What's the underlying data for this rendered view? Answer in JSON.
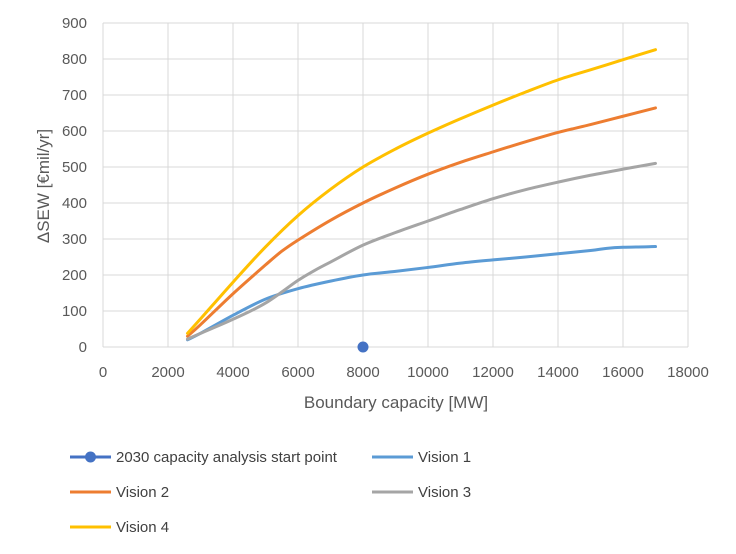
{
  "chart_data": {
    "type": "line",
    "title": "",
    "xlabel": "Boundary capacity [MW]",
    "ylabel": "ΔSEW [€mil/yr]",
    "xlim": [
      0,
      18000
    ],
    "ylim": [
      0,
      900
    ],
    "x_ticks": [
      0,
      2000,
      4000,
      6000,
      8000,
      10000,
      12000,
      14000,
      16000,
      18000
    ],
    "y_ticks": [
      0,
      100,
      200,
      300,
      400,
      500,
      600,
      700,
      800,
      900
    ],
    "grid": true,
    "legend_position": "bottom",
    "series": [
      {
        "name": "2030 capacity analysis start point",
        "kind": "marker",
        "color": "#4472c4",
        "points": [
          [
            8000,
            0
          ]
        ]
      },
      {
        "name": "Vision 1",
        "kind": "line",
        "color": "#5b9bd5",
        "points": [
          [
            2600,
            20
          ],
          [
            3000,
            38
          ],
          [
            4000,
            88
          ],
          [
            5000,
            133
          ],
          [
            6000,
            162
          ],
          [
            7000,
            183
          ],
          [
            8000,
            200
          ],
          [
            9000,
            210
          ],
          [
            10000,
            221
          ],
          [
            11000,
            233
          ],
          [
            12000,
            242
          ],
          [
            13000,
            250
          ],
          [
            14000,
            259
          ],
          [
            15000,
            268
          ],
          [
            15500,
            274
          ],
          [
            16000,
            277
          ],
          [
            17000,
            279
          ]
        ]
      },
      {
        "name": "Vision 2",
        "kind": "line",
        "color": "#ed7d31",
        "points": [
          [
            2600,
            30
          ],
          [
            3000,
            62
          ],
          [
            4000,
            148
          ],
          [
            5000,
            228
          ],
          [
            5500,
            266
          ],
          [
            6000,
            297
          ],
          [
            7000,
            352
          ],
          [
            8000,
            400
          ],
          [
            9000,
            442
          ],
          [
            10000,
            480
          ],
          [
            11000,
            513
          ],
          [
            12000,
            542
          ],
          [
            13000,
            570
          ],
          [
            14000,
            596
          ],
          [
            15000,
            618
          ],
          [
            16000,
            641
          ],
          [
            17000,
            664
          ]
        ]
      },
      {
        "name": "Vision 3",
        "kind": "line",
        "color": "#a5a5a5",
        "points": [
          [
            2600,
            22
          ],
          [
            3000,
            38
          ],
          [
            4000,
            77
          ],
          [
            5000,
            122
          ],
          [
            6000,
            185
          ],
          [
            6500,
            212
          ],
          [
            7000,
            236
          ],
          [
            8000,
            283
          ],
          [
            9000,
            318
          ],
          [
            10000,
            350
          ],
          [
            11000,
            382
          ],
          [
            12000,
            412
          ],
          [
            13000,
            437
          ],
          [
            14000,
            458
          ],
          [
            15000,
            477
          ],
          [
            16000,
            494
          ],
          [
            17000,
            510
          ]
        ]
      },
      {
        "name": "Vision 4",
        "kind": "line",
        "color": "#ffc000",
        "points": [
          [
            2600,
            38
          ],
          [
            3000,
            78
          ],
          [
            4000,
            180
          ],
          [
            5000,
            278
          ],
          [
            6000,
            365
          ],
          [
            7000,
            438
          ],
          [
            8000,
            500
          ],
          [
            9000,
            550
          ],
          [
            10000,
            594
          ],
          [
            11000,
            634
          ],
          [
            12000,
            672
          ],
          [
            13000,
            708
          ],
          [
            14000,
            742
          ],
          [
            15000,
            770
          ],
          [
            16000,
            798
          ],
          [
            17000,
            826
          ]
        ]
      }
    ]
  }
}
